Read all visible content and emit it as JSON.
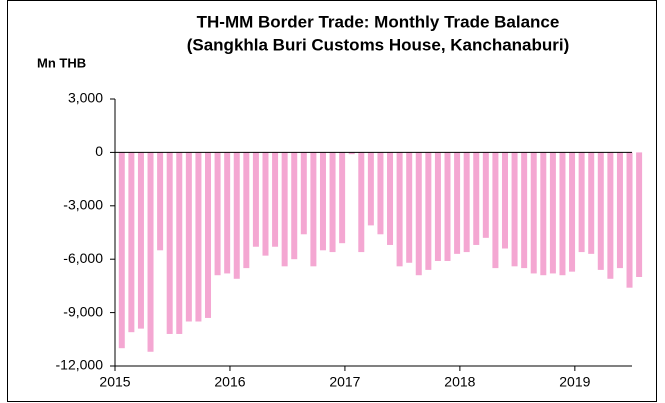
{
  "chart_data": {
    "type": "bar",
    "title": "TH-MM Border Trade: Monthly Trade Balance",
    "subtitle": "(Sangkhla Buri Customs House, Kanchanaburi)",
    "y_label": "Mn THB",
    "color": "#f4a7d2",
    "categories": [
      "2015",
      null,
      null,
      null,
      null,
      null,
      null,
      null,
      null,
      null,
      null,
      null,
      "2016",
      null,
      null,
      null,
      null,
      null,
      null,
      null,
      null,
      null,
      null,
      null,
      "2017",
      null,
      null,
      null,
      null,
      null,
      null,
      null,
      null,
      null,
      null,
      null,
      "2018",
      null,
      null,
      null,
      null,
      null,
      null,
      null,
      null,
      null,
      null,
      null,
      "2019",
      null,
      null,
      null,
      null,
      null,
      null
    ],
    "values": [
      -11000,
      -10100,
      -9900,
      -11200,
      -5500,
      -10200,
      -10200,
      -9500,
      -9500,
      -9300,
      -6900,
      -6800,
      -7100,
      -6500,
      -5300,
      -5800,
      -5300,
      -6400,
      -6000,
      -4600,
      -6400,
      -5500,
      -5600,
      -5100,
      -100,
      -5600,
      -4100,
      -4600,
      -5200,
      -6400,
      -6200,
      -6900,
      -6600,
      -6100,
      -6100,
      -5700,
      -5600,
      -5200,
      -4800,
      -6500,
      -5400,
      -6400,
      -6500,
      -6800,
      -6900,
      -6800,
      -6900,
      -6700,
      -5600,
      -5700,
      -6600,
      -7100,
      -6500,
      -7600,
      -7000
    ],
    "ylim": [
      -12000,
      3000
    ],
    "yticks": [
      {
        "value": -12000,
        "label": "-12,000"
      },
      {
        "value": -9000,
        "label": "-9,000"
      },
      {
        "value": -6000,
        "label": "-6,000"
      },
      {
        "value": -3000,
        "label": "-3,000"
      },
      0,
      {
        "value": 3000,
        "label": "3,000"
      }
    ]
  }
}
